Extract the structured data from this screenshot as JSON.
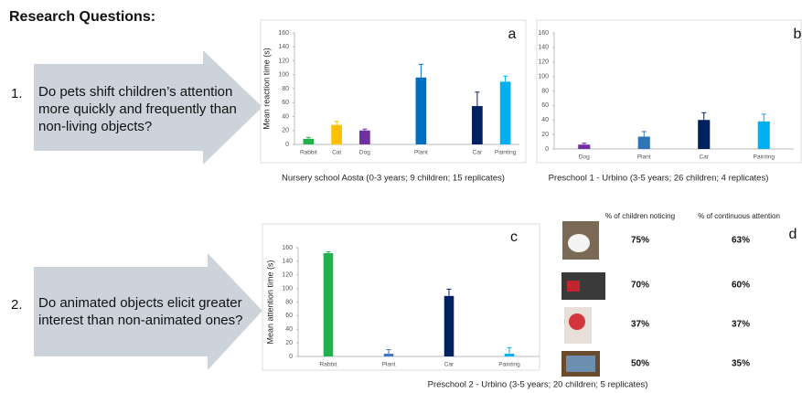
{
  "title": "Research Questions:",
  "questions": [
    {
      "number": "1.",
      "text": "Do pets shift children’s attention more quickly and frequently than non-living objects?"
    },
    {
      "number": "2.",
      "text": "Do animated objects elicit greater interest than non-animated ones?"
    }
  ],
  "chart_data": [
    {
      "type": "bar",
      "panel": "a",
      "ylabel": "Mean reaction time (s)",
      "caption": "Nursery school Aosta (0-3 years; 9 children; 15 replicates)",
      "categories": [
        "Rabbit",
        "Cat",
        "Dog",
        null,
        "Plant",
        null,
        "Car",
        "Painting"
      ],
      "values": [
        8,
        28,
        20,
        null,
        96,
        null,
        55,
        90
      ],
      "errors": [
        2,
        5,
        2,
        null,
        19,
        null,
        20,
        8
      ],
      "colors": [
        "#22b14c",
        "#ffc000",
        "#7030a0",
        null,
        "#0070c0",
        null,
        "#002060",
        "#00b0f0"
      ],
      "ylim": [
        0,
        160
      ],
      "yticks": [
        0,
        20,
        40,
        60,
        80,
        100,
        120,
        140,
        160
      ]
    },
    {
      "type": "bar",
      "panel": "b",
      "caption": "Preschool 1 - Urbino (3-5 years; 26 children; 4 replicates)",
      "categories": [
        "Dog",
        "Plant",
        "Car",
        "Painting"
      ],
      "values": [
        6,
        17,
        40,
        38
      ],
      "errors": [
        2,
        7,
        10,
        10
      ],
      "colors": [
        "#7030a0",
        "#2e75b6",
        "#002060",
        "#00b0f0"
      ],
      "ylim": [
        0,
        160
      ],
      "yticks": [
        0,
        20,
        40,
        60,
        80,
        100,
        120,
        140,
        160
      ]
    },
    {
      "type": "bar",
      "panel": "c",
      "ylabel": "Mean attention time (s)",
      "caption": "Preschool 2  - Urbino (3-5 years; 20 children; 5 replicates)",
      "categories": [
        "Rabbit",
        "Plant",
        "Car",
        "Painting"
      ],
      "values": [
        152,
        4,
        89,
        4
      ],
      "errors": [
        2,
        6,
        10,
        9
      ],
      "colors": [
        "#22b14c",
        "#4472c4",
        "#002060",
        "#00b0f0"
      ],
      "ylim": [
        0,
        160
      ],
      "yticks": [
        0,
        20,
        40,
        60,
        80,
        100,
        120,
        140,
        160
      ]
    }
  ],
  "table_d": {
    "panel": "d",
    "header": [
      "% of children noticing",
      "% of continuous attention"
    ],
    "rows": [
      [
        "75%",
        "63%"
      ],
      [
        "70%",
        "60%"
      ],
      [
        "37%",
        "37%"
      ],
      [
        "50%",
        "35%"
      ]
    ]
  }
}
